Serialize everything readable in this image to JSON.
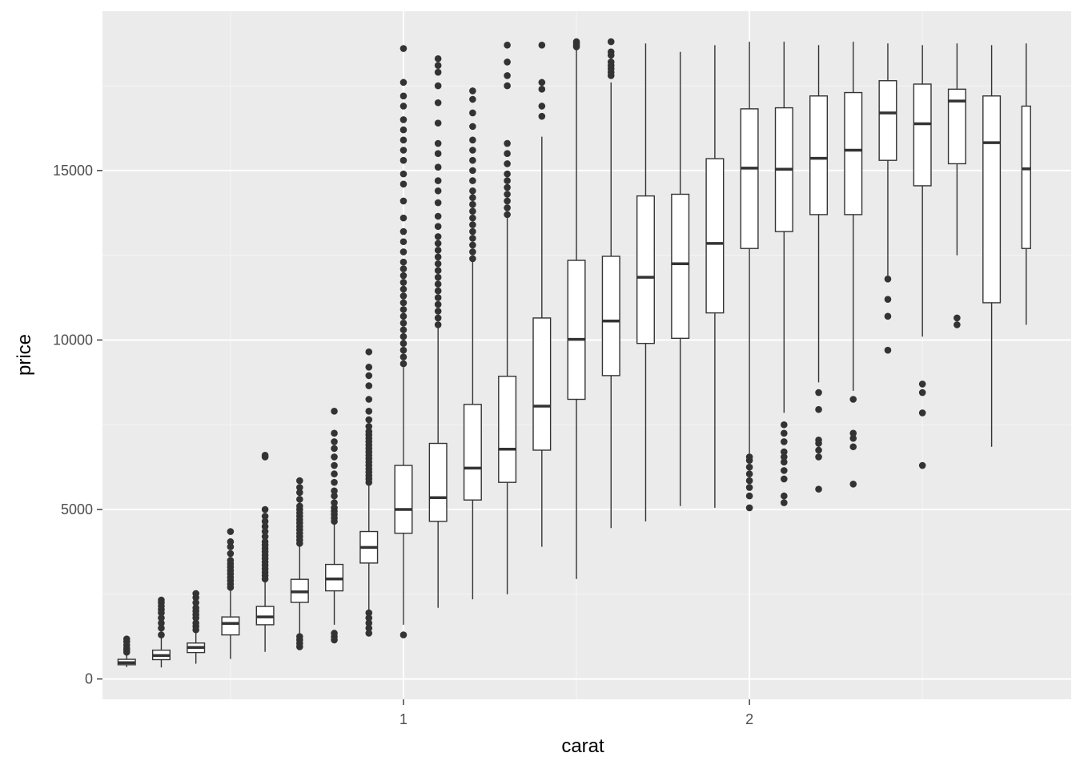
{
  "chart_data": {
    "type": "boxplot",
    "title": "",
    "xlabel": "carat",
    "ylabel": "price",
    "xlim": [
      0.13,
      2.93
    ],
    "ylim": [
      -600,
      19700
    ],
    "x_ticks": [
      {
        "value": 1,
        "label": "1"
      },
      {
        "value": 2,
        "label": "2"
      }
    ],
    "x_minor_ticks": [
      0.5,
      1.5,
      2.5
    ],
    "y_ticks": [
      {
        "value": 0,
        "label": "0"
      },
      {
        "value": 5000,
        "label": "5000"
      },
      {
        "value": 10000,
        "label": "10000"
      },
      {
        "value": 15000,
        "label": "15000"
      }
    ],
    "y_minor_ticks": [
      2500,
      7500,
      12500,
      17500
    ],
    "grid": true,
    "box_width": 0.05,
    "colors": {
      "panel": "#ebebeb",
      "grid_major": "#ffffff",
      "grid_minor": "#f5f5f5",
      "box_line": "#333333",
      "box_fill": "#ffffff",
      "outlier": "#333333",
      "tick": "#333333"
    },
    "boxes": [
      {
        "x": 0.2,
        "whisker_low": 350,
        "q1": 420,
        "median": 480,
        "q3": 580,
        "whisker_high": 740,
        "outliers": [
          790,
          850,
          910,
          1000,
          1100,
          1180
        ]
      },
      {
        "x": 0.3,
        "whisker_low": 340,
        "q1": 570,
        "median": 690,
        "q3": 850,
        "whisker_high": 1230,
        "outliers": [
          1300,
          1500,
          1650,
          1800,
          1950,
          2050,
          2150,
          2250,
          2330
        ]
      },
      {
        "x": 0.4,
        "whisker_low": 450,
        "q1": 780,
        "median": 930,
        "q3": 1060,
        "whisker_high": 1400,
        "outliers": [
          1450,
          1550,
          1650,
          1800,
          1900,
          2000,
          2100,
          2250,
          2400,
          2520
        ]
      },
      {
        "x": 0.5,
        "whisker_low": 590,
        "q1": 1300,
        "median": 1640,
        "q3": 1830,
        "whisker_high": 2620,
        "outliers": [
          2700,
          2800,
          2900,
          3000,
          3100,
          3200,
          3300,
          3400,
          3500,
          3700,
          3900,
          4050,
          4350
        ]
      },
      {
        "x": 0.6,
        "whisker_low": 800,
        "q1": 1600,
        "median": 1830,
        "q3": 2140,
        "whisker_high": 2880,
        "outliers": [
          2950,
          3050,
          3150,
          3250,
          3350,
          3450,
          3550,
          3650,
          3750,
          3850,
          3950,
          4050,
          4200,
          4350,
          4500,
          4650,
          4800,
          5000,
          6550,
          6600
        ]
      },
      {
        "x": 0.7,
        "whisker_low": 1000,
        "q1": 2260,
        "median": 2570,
        "q3": 2940,
        "whisker_high": 3920,
        "outliers": [
          950,
          1050,
          1150,
          1250,
          4000,
          4100,
          4200,
          4300,
          4400,
          4500,
          4600,
          4700,
          4800,
          4900,
          5000,
          5100,
          5300,
          5500,
          5650,
          5850
        ]
      },
      {
        "x": 0.8,
        "whisker_low": 1600,
        "q1": 2600,
        "median": 2950,
        "q3": 3380,
        "whisker_high": 4550,
        "outliers": [
          1150,
          1250,
          1350,
          4650,
          4750,
          4850,
          4950,
          5050,
          5200,
          5400,
          5550,
          5800,
          6050,
          6300,
          6550,
          6800,
          7000,
          7250,
          7900
        ]
      },
      {
        "x": 0.9,
        "whisker_low": 2000,
        "q1": 3420,
        "median": 3880,
        "q3": 4350,
        "whisker_high": 5700,
        "outliers": [
          1350,
          1500,
          1650,
          1800,
          1950,
          5800,
          5900,
          6000,
          6100,
          6200,
          6300,
          6400,
          6500,
          6600,
          6700,
          6800,
          6900,
          7000,
          7100,
          7200,
          7300,
          7450,
          7650,
          7900,
          8250,
          8650,
          8950,
          9200,
          9650
        ]
      },
      {
        "x": 1.0,
        "whisker_low": 1600,
        "q1": 4300,
        "median": 5000,
        "q3": 6300,
        "whisker_high": 9200,
        "outliers": [
          1300,
          9300,
          9500,
          9700,
          9900,
          10100,
          10300,
          10500,
          10700,
          10900,
          11100,
          11300,
          11500,
          11700,
          11900,
          12100,
          12300,
          12600,
          12900,
          13200,
          13600,
          14100,
          14600,
          14900,
          15300,
          15600,
          15900,
          16200,
          16500,
          16900,
          17200,
          17600,
          18600
        ]
      },
      {
        "x": 1.1,
        "whisker_low": 2100,
        "q1": 4650,
        "median": 5350,
        "q3": 6950,
        "whisker_high": 10350,
        "outliers": [
          10450,
          10650,
          10850,
          11050,
          11250,
          11450,
          11650,
          11850,
          12050,
          12250,
          12450,
          12650,
          12850,
          13050,
          13350,
          13650,
          14050,
          14400,
          14700,
          15100,
          15500,
          15800,
          16400,
          17000,
          17500,
          17900,
          18100,
          18300
        ]
      },
      {
        "x": 1.2,
        "whisker_low": 2350,
        "q1": 5280,
        "median": 6220,
        "q3": 8100,
        "whisker_high": 12300,
        "outliers": [
          12400,
          12600,
          12800,
          13000,
          13200,
          13400,
          13600,
          13800,
          14000,
          14200,
          14400,
          14700,
          15000,
          15300,
          15600,
          15900,
          16300,
          16700,
          17100,
          17350
        ]
      },
      {
        "x": 1.3,
        "whisker_low": 2500,
        "q1": 5800,
        "median": 6780,
        "q3": 8930,
        "whisker_high": 13600,
        "outliers": [
          13700,
          13900,
          14100,
          14300,
          14500,
          14700,
          14900,
          15200,
          15500,
          15800,
          17500,
          17800,
          18200,
          18700
        ]
      },
      {
        "x": 1.4,
        "whisker_low": 3900,
        "q1": 6750,
        "median": 8050,
        "q3": 10650,
        "whisker_high": 16000,
        "outliers": [
          16600,
          16900,
          17400,
          17600,
          18700
        ]
      },
      {
        "x": 1.5,
        "whisker_low": 2950,
        "q1": 8250,
        "median": 10020,
        "q3": 12350,
        "whisker_high": 18600,
        "outliers": [
          18650,
          18700,
          18750,
          18800
        ]
      },
      {
        "x": 1.6,
        "whisker_low": 4450,
        "q1": 8950,
        "median": 10560,
        "q3": 12470,
        "whisker_high": 17600,
        "outliers": [
          17800,
          17900,
          18000,
          18100,
          18200,
          18400,
          18500,
          18800
        ]
      },
      {
        "x": 1.7,
        "whisker_low": 4650,
        "q1": 9900,
        "median": 11850,
        "q3": 14250,
        "whisker_high": 18750,
        "outliers": []
      },
      {
        "x": 1.8,
        "whisker_low": 5100,
        "q1": 10050,
        "median": 12250,
        "q3": 14300,
        "whisker_high": 18500,
        "outliers": []
      },
      {
        "x": 1.9,
        "whisker_low": 5050,
        "q1": 10800,
        "median": 12850,
        "q3": 15350,
        "whisker_high": 18700,
        "outliers": []
      },
      {
        "x": 2.0,
        "whisker_low": 6650,
        "q1": 12700,
        "median": 15070,
        "q3": 16820,
        "whisker_high": 18800,
        "outliers": [
          5050,
          5400,
          5650,
          5850,
          6050,
          6250,
          6450,
          6550
        ]
      },
      {
        "x": 2.1,
        "whisker_low": 7850,
        "q1": 13200,
        "median": 15040,
        "q3": 16850,
        "whisker_high": 18800,
        "outliers": [
          5200,
          5400,
          5900,
          6150,
          6400,
          6550,
          6700,
          7000,
          7250,
          7500
        ]
      },
      {
        "x": 2.2,
        "whisker_low": 8750,
        "q1": 13700,
        "median": 15360,
        "q3": 17200,
        "whisker_high": 18700,
        "outliers": [
          5600,
          6550,
          6750,
          6950,
          7050,
          7950,
          8450
        ]
      },
      {
        "x": 2.3,
        "whisker_low": 8500,
        "q1": 13700,
        "median": 15600,
        "q3": 17300,
        "whisker_high": 18800,
        "outliers": [
          5750,
          6850,
          7100,
          7250,
          8250
        ]
      },
      {
        "x": 2.4,
        "whisker_low": 11900,
        "q1": 15300,
        "median": 16700,
        "q3": 17650,
        "whisker_high": 18750,
        "outliers": [
          9700,
          10700,
          11200,
          11800
        ]
      },
      {
        "x": 2.5,
        "whisker_low": 10100,
        "q1": 14550,
        "median": 16380,
        "q3": 17550,
        "whisker_high": 18700,
        "outliers": [
          6300,
          7850,
          8450,
          8700
        ]
      },
      {
        "x": 2.6,
        "whisker_low": 12500,
        "q1": 15200,
        "median": 17050,
        "q3": 17400,
        "whisker_high": 18750,
        "outliers": [
          10450,
          10650
        ]
      },
      {
        "x": 2.7,
        "whisker_low": 6850,
        "q1": 11100,
        "median": 15820,
        "q3": 17200,
        "whisker_high": 18700,
        "outliers": []
      },
      {
        "x": 2.8,
        "whisker_low": 10450,
        "q1": 12700,
        "median": 15050,
        "q3": 16900,
        "whisker_high": 18750,
        "outliers": [],
        "width": 0.025
      }
    ]
  }
}
